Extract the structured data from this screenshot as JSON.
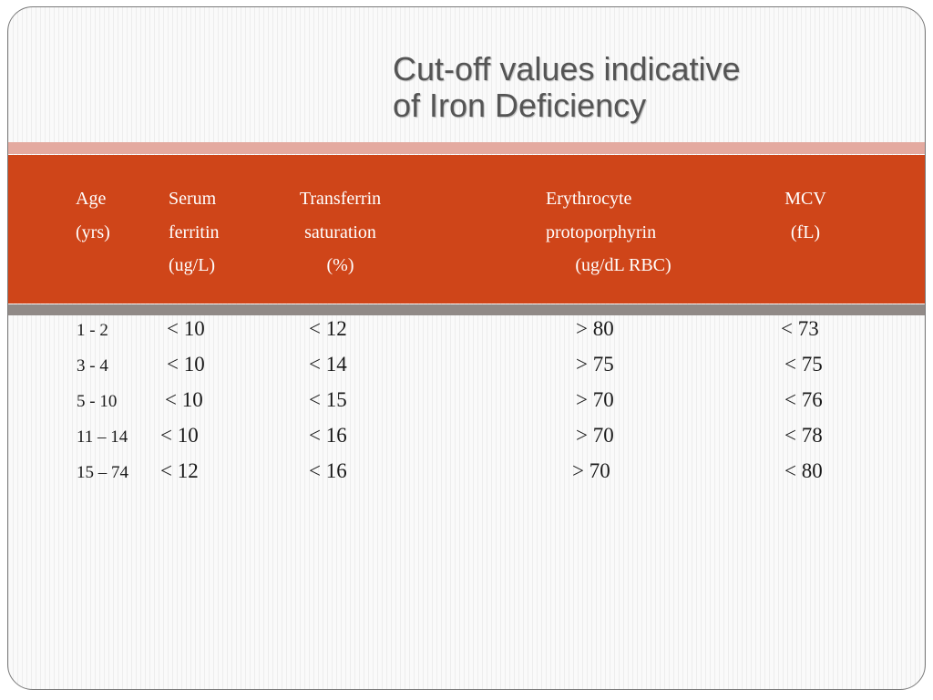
{
  "title": {
    "line1": "Cut-off values indicative",
    "line2": "of Iron Deficiency"
  },
  "table": {
    "headers": [
      {
        "lines": [
          "Age",
          "(yrs)"
        ]
      },
      {
        "lines": [
          "Serum",
          "ferritin",
          "(ug/L)"
        ]
      },
      {
        "lines": [
          "Transferrin",
          "saturation",
          "(%)"
        ]
      },
      {
        "lines": [
          "Erythrocyte",
          "protoporphyrin",
          "(ug/dL RBC)"
        ]
      },
      {
        "lines": [
          "MCV",
          "(fL)"
        ]
      }
    ],
    "rows": [
      [
        "1 - 2",
        "< 10",
        "< 12",
        "> 80",
        "< 73"
      ],
      [
        "3 - 4",
        "< 10",
        "< 14",
        "> 75",
        "< 75"
      ],
      [
        "5 - 10",
        "< 10",
        "< 15",
        "> 70",
        "< 76"
      ],
      [
        "11 – 14",
        "< 10",
        "< 16",
        "> 70",
        "< 78"
      ],
      [
        "15 – 74",
        "< 12",
        "< 16",
        "> 70",
        "< 80"
      ]
    ]
  },
  "colors": {
    "header_band": "#cf4519",
    "accent_band": "#e4aaa0",
    "divider_band": "#918a87",
    "title_text": "#555555"
  }
}
